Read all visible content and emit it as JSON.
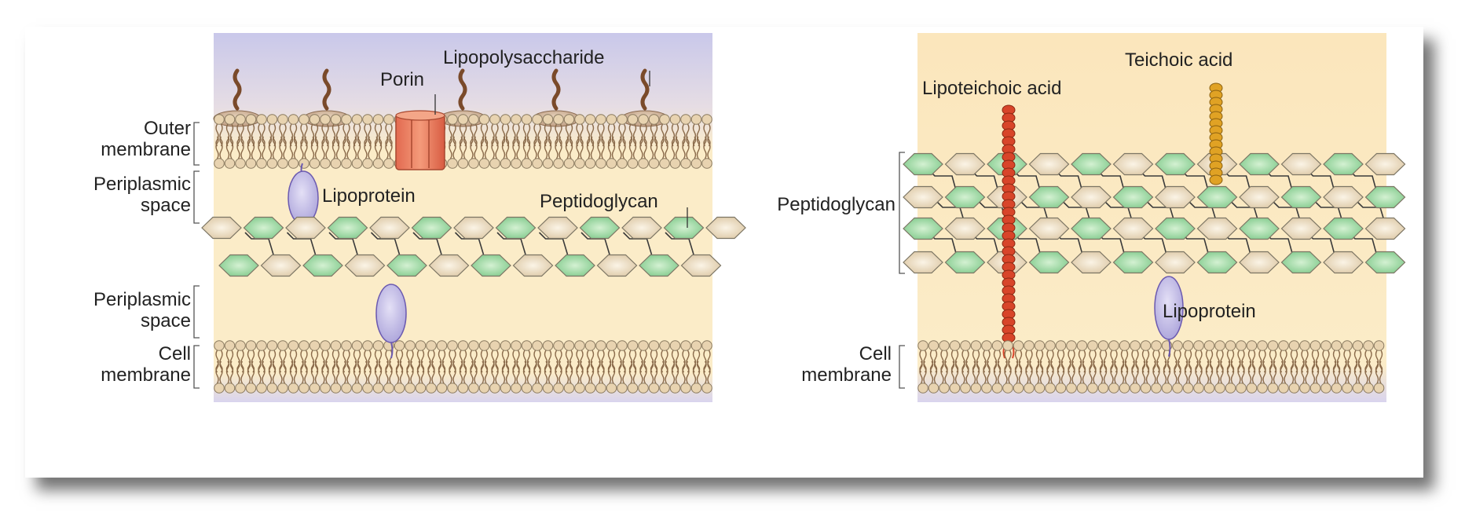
{
  "left_panel": {
    "labels": {
      "outer_membrane": [
        "Outer",
        "membrane"
      ],
      "periplasmic_space_top": [
        "Periplasmic",
        "space"
      ],
      "periplasmic_space_bottom": [
        "Periplasmic",
        "space"
      ],
      "cell_membrane": [
        "Cell",
        "membrane"
      ],
      "porin": "Porin",
      "lipopolysaccharide": "Lipopolysaccharide",
      "lipoprotein": "Lipoprotein",
      "peptidoglycan": "Peptidoglycan"
    }
  },
  "right_panel": {
    "labels": {
      "teichoic_acid": "Teichoic acid",
      "lipoteichoic_acid": "Lipoteichoic acid",
      "peptidoglycan": "Peptidoglycan",
      "lipoprotein": "Lipoprotein",
      "cell_membrane": [
        "Cell",
        "membrane"
      ]
    }
  },
  "colors": {
    "background_cream": "#fbecc8",
    "extracellular_lavender": "#c9c8ea",
    "lipid_head": "#e8d3b0",
    "lipid_head_stroke": "#8a7a60",
    "glycan_green": "#7fc98a",
    "glycan_tan": "#e6d3b0",
    "porin_orange": "#e8765a",
    "lps_brown": "#7a4a2a",
    "lipoprotein_purple": "#b8b0e0",
    "lipoteichoic_red": "#d8452a",
    "teichoic_gold": "#e0a224"
  }
}
